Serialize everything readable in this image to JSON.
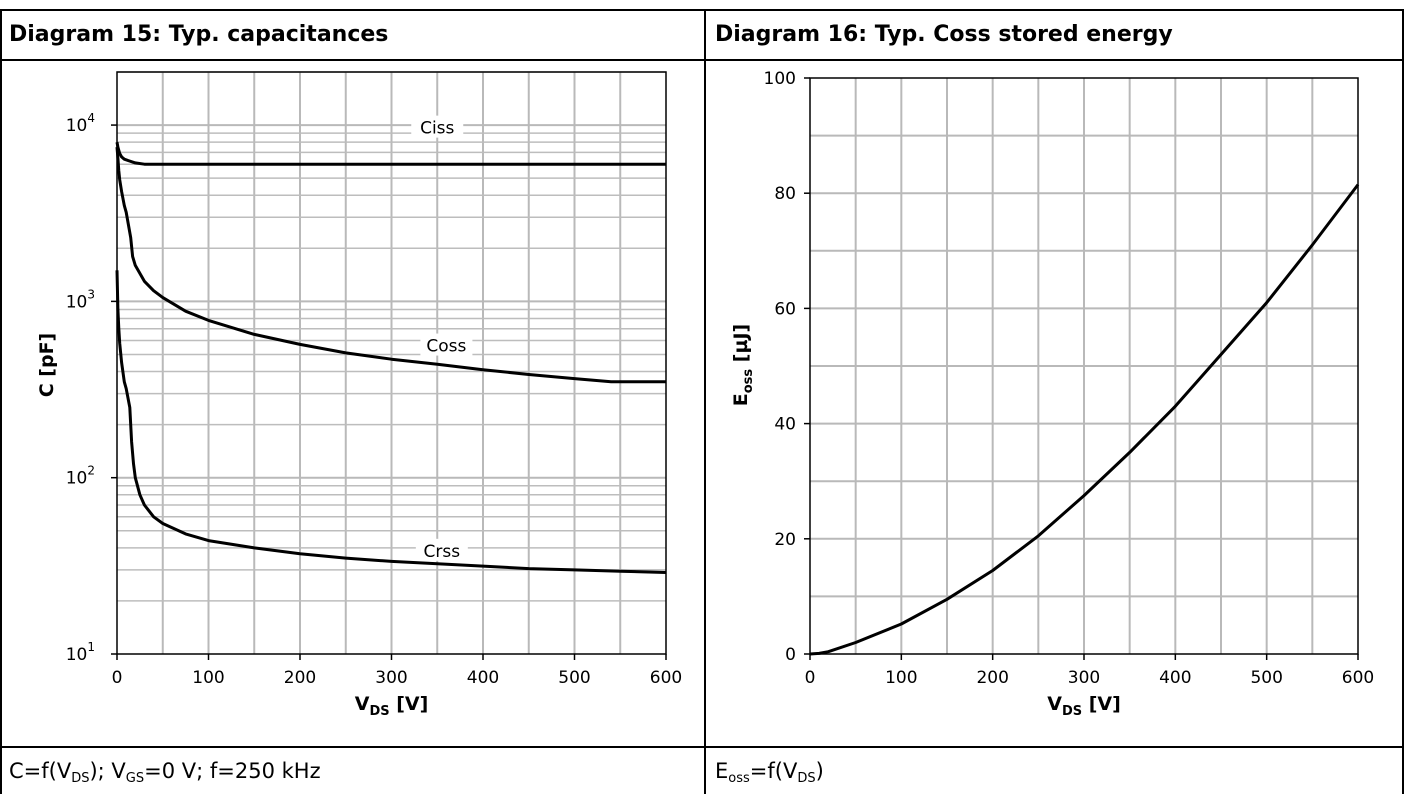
{
  "left_panel": {
    "header": "Diagram 15: Typ. capacitances",
    "footer": {
      "parts": [
        "C=f(V",
        "DS",
        "); V",
        "GS",
        "=0 V; f=250 kHz"
      ]
    }
  },
  "right_panel": {
    "header": "Diagram 16: Typ. Coss stored energy",
    "footer": {
      "parts": [
        "E",
        "oss",
        "=f(V",
        "DS",
        ")"
      ]
    }
  },
  "chart_data": [
    {
      "type": "line",
      "title": "Diagram 15: Typ. capacitances",
      "xlabel": "V_DS [V]",
      "ylabel": "C [pF]",
      "x_scale": "linear",
      "y_scale": "log",
      "xlim": [
        0,
        600
      ],
      "ylim": [
        10,
        20000
      ],
      "grid": true,
      "x_ticks": [
        "0",
        "100",
        "200",
        "300",
        "400",
        "500",
        "600"
      ],
      "y_ticks": [
        {
          "base": "10",
          "exp": "1",
          "value": 10
        },
        {
          "base": "10",
          "exp": "2",
          "value": 100
        },
        {
          "base": "10",
          "exp": "3",
          "value": 1000
        },
        {
          "base": "10",
          "exp": "4",
          "value": 10000
        }
      ],
      "series": [
        {
          "name": "Ciss",
          "label_at": [
            350,
            9300
          ],
          "x": [
            0,
            1,
            3,
            5,
            8,
            12,
            20,
            30,
            50,
            100,
            200,
            300,
            400,
            500,
            600
          ],
          "y": [
            8000,
            7500,
            6900,
            6600,
            6400,
            6300,
            6100,
            6000,
            6000,
            6000,
            6000,
            6000,
            6000,
            6000,
            6000
          ]
        },
        {
          "name": "Coss",
          "label_at": [
            360,
            540
          ],
          "x": [
            0,
            1,
            2,
            3,
            5,
            8,
            10,
            15,
            17,
            20,
            30,
            40,
            50,
            75,
            100,
            150,
            200,
            250,
            300,
            350,
            400,
            450,
            500,
            540,
            560,
            600
          ],
          "y": [
            7500,
            6500,
            5500,
            4900,
            4200,
            3500,
            3200,
            2300,
            1800,
            1600,
            1300,
            1150,
            1050,
            880,
            780,
            650,
            570,
            510,
            470,
            440,
            410,
            385,
            365,
            350,
            350,
            350
          ]
        },
        {
          "name": "Crss",
          "label_at": [
            355,
            37
          ],
          "x": [
            0,
            1,
            2,
            3,
            5,
            8,
            10,
            14,
            16,
            18,
            20,
            25,
            30,
            40,
            50,
            75,
            100,
            150,
            200,
            250,
            300,
            350,
            400,
            450,
            500,
            550,
            600
          ],
          "y": [
            1500,
            900,
            700,
            580,
            450,
            350,
            320,
            250,
            160,
            120,
            100,
            80,
            70,
            60,
            55,
            48,
            44,
            40,
            37,
            35,
            33.5,
            32.5,
            31.5,
            30.5,
            30,
            29.5,
            29
          ]
        }
      ]
    },
    {
      "type": "line",
      "title": "Diagram 16: Typ. Coss stored energy",
      "xlabel": "V_DS [V]",
      "ylabel": "E_oss [µJ]",
      "x_scale": "linear",
      "y_scale": "linear",
      "xlim": [
        0,
        600
      ],
      "ylim": [
        0,
        100
      ],
      "grid": true,
      "x_ticks": [
        "0",
        "100",
        "200",
        "300",
        "400",
        "500",
        "600"
      ],
      "y_ticks": [
        "0",
        "20",
        "40",
        "60",
        "80",
        "100"
      ],
      "series": [
        {
          "x": [
            0,
            10,
            20,
            50,
            100,
            150,
            200,
            250,
            300,
            350,
            400,
            450,
            500,
            550,
            600
          ],
          "y": [
            0,
            0.1,
            0.4,
            2,
            5.2,
            9.5,
            14.5,
            20.5,
            27.5,
            35,
            43,
            52,
            61,
            71,
            81.5
          ]
        }
      ]
    }
  ]
}
